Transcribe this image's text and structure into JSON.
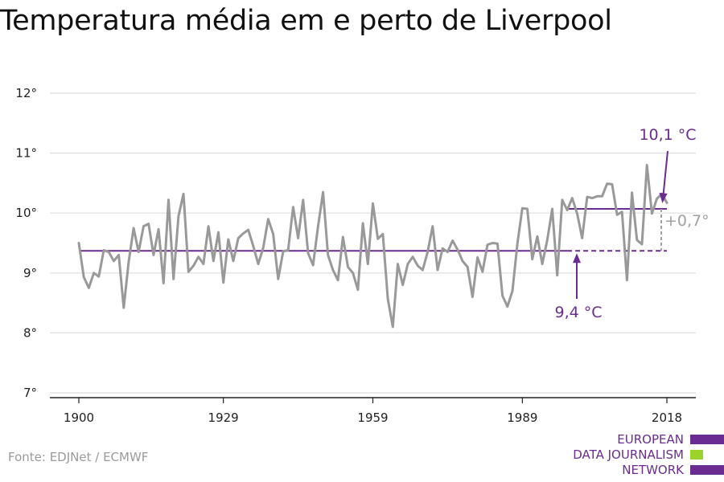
{
  "title": "Temperatura média em e perto de Liverpool",
  "source": "Fonte: EDJNet / ECMWF",
  "logo": {
    "lines": [
      "EUROPEAN",
      "DATA JOURNALISM",
      "NETWORK"
    ],
    "colors": {
      "purple": "#6b2c91",
      "green": "#9bd22c"
    }
  },
  "colors": {
    "series": "#999999",
    "accent": "#6b2c91",
    "grid": "#dddddd",
    "axis": "#222222",
    "annotation_gray": "#a0a0a0"
  },
  "chart_data": {
    "type": "line",
    "title": "Temperatura média em e perto de Liverpool",
    "x_ticks": [
      1900,
      1929,
      1959,
      1989,
      2018
    ],
    "y_ticks": [
      7,
      8,
      9,
      10,
      11,
      12
    ],
    "y_tick_labels": [
      "7°",
      "8°",
      "9°",
      "10°",
      "11°",
      "12°"
    ],
    "xlim": [
      1900,
      2018
    ],
    "ylim": [
      7,
      12
    ],
    "grid": true,
    "series": [
      {
        "x": [
          1900,
          1901,
          1902,
          1903,
          1904,
          1905,
          1906,
          1907,
          1908,
          1909,
          1910,
          1911,
          1912,
          1913,
          1914,
          1915,
          1916,
          1917,
          1918,
          1919,
          1920,
          1921,
          1922,
          1923,
          1924,
          1925,
          1926,
          1927,
          1928,
          1929,
          1930,
          1931,
          1932,
          1933,
          1934,
          1935,
          1936,
          1937,
          1938,
          1939,
          1940,
          1941,
          1942,
          1943,
          1944,
          1945,
          1946,
          1947,
          1948,
          1949,
          1950,
          1951,
          1952,
          1953,
          1954,
          1955,
          1956,
          1957,
          1958,
          1959,
          1960,
          1961,
          1962,
          1963,
          1964,
          1965,
          1966,
          1967,
          1968,
          1969,
          1970,
          1971,
          1972,
          1973,
          1974,
          1975,
          1976,
          1977,
          1978,
          1979,
          1980,
          1981,
          1982,
          1983,
          1984,
          1985,
          1986,
          1987,
          1988,
          1989,
          1990,
          1991,
          1992,
          1993,
          1994,
          1995,
          1996,
          1997,
          1998,
          1999,
          2000,
          2001,
          2002,
          2003,
          2004,
          2005,
          2006,
          2007,
          2008,
          2009,
          2010,
          2011,
          2012,
          2013,
          2014,
          2015,
          2016,
          2017,
          2018
        ],
        "values": [
          9.5,
          8.93,
          8.75,
          9.0,
          8.94,
          9.38,
          9.35,
          9.2,
          9.3,
          8.42,
          9.18,
          9.75,
          9.35,
          9.78,
          9.82,
          9.3,
          9.73,
          8.83,
          10.22,
          8.9,
          9.95,
          10.32,
          9.02,
          9.12,
          9.27,
          9.15,
          9.78,
          9.2,
          9.68,
          8.84,
          9.56,
          9.2,
          9.58,
          9.66,
          9.72,
          9.45,
          9.15,
          9.42,
          9.9,
          9.65,
          8.9,
          9.36,
          9.38,
          10.1,
          9.58,
          10.22,
          9.33,
          9.13,
          9.78,
          10.35,
          9.3,
          9.05,
          8.88,
          9.6,
          9.1,
          9.0,
          8.72,
          9.83,
          9.15,
          10.16,
          9.57,
          9.65,
          8.57,
          8.1,
          9.15,
          8.8,
          9.15,
          9.27,
          9.12,
          9.05,
          9.35,
          9.78,
          9.05,
          9.41,
          9.35,
          9.54,
          9.39,
          9.2,
          9.1,
          8.6,
          9.26,
          9.02,
          9.47,
          9.5,
          9.49,
          8.62,
          8.44,
          8.7,
          9.49,
          10.08,
          10.07,
          9.23,
          9.61,
          9.15,
          9.55,
          10.07,
          8.96,
          10.22,
          10.05,
          10.25,
          9.99,
          9.58,
          10.27,
          10.25,
          10.28,
          10.28,
          10.49,
          10.48,
          9.97,
          10.02,
          8.88,
          10.34,
          9.55,
          9.48,
          10.8,
          9.99,
          10.24,
          10.32,
          10.17
        ]
      }
    ],
    "baseline": {
      "value": 9.37,
      "label": "9,4 °C"
    },
    "recent": {
      "value": 10.07,
      "label": "10,1 °C"
    },
    "difference_label": "+0,7°"
  }
}
